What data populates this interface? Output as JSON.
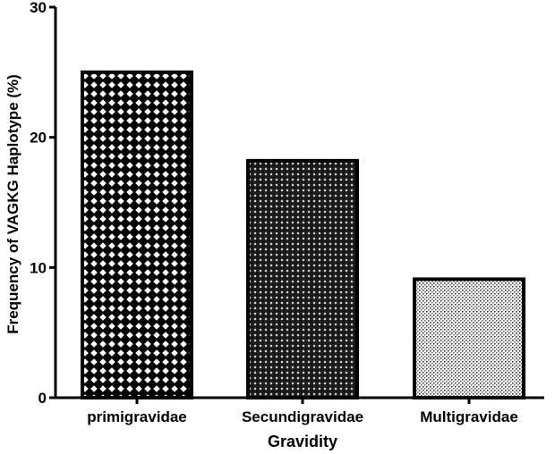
{
  "chart_data": {
    "type": "bar",
    "title": "",
    "xlabel": "Gravidity",
    "ylabel": "Frequency of VAGKG Haplotype (%)",
    "categories": [
      "primigravidae",
      "Secundigravidae",
      "Multigravidae"
    ],
    "values": [
      25,
      18.2,
      9.1
    ],
    "ylim": [
      0,
      30
    ],
    "yticks": [
      0,
      10,
      20,
      30
    ],
    "grid": false,
    "legend": "none",
    "fill_patterns": [
      "coarse-crosshatch",
      "dense-diamond",
      "fine-dots"
    ],
    "colors": {
      "bar_outline": "#000000",
      "axis": "#000000",
      "background": "#ffffff"
    }
  }
}
